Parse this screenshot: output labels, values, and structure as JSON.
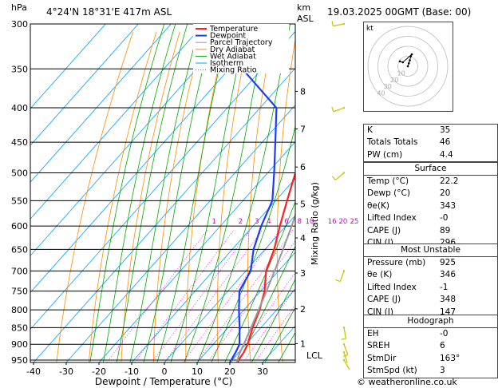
{
  "header": {
    "location": "4°24'N  18°31'E  417m  ASL",
    "date": "19.03.2025  00GMT  (Base: 00)",
    "hpa_label": "hPa",
    "km_label": "km",
    "asl_label": "ASL"
  },
  "copyright": "© weatheronline.co.uk",
  "chart_data": {
    "type": "skew-t",
    "xlabel": "Dewpoint / Temperature (°C)",
    "ylabel_right": "Mixing Ratio (g/kg)",
    "x_ticks": [
      -40,
      -30,
      -20,
      -10,
      0,
      10,
      20,
      30
    ],
    "p_ticks": [
      300,
      350,
      400,
      450,
      500,
      550,
      600,
      650,
      700,
      750,
      800,
      850,
      900,
      950
    ],
    "km_ticks": [
      {
        "label": "8",
        "p": 378
      },
      {
        "label": "7",
        "p": 430
      },
      {
        "label": "6",
        "p": 490
      },
      {
        "label": "5",
        "p": 556
      },
      {
        "label": "4",
        "p": 625
      },
      {
        "label": "3",
        "p": 705
      },
      {
        "label": "2",
        "p": 797
      },
      {
        "label": "1",
        "p": 898
      },
      {
        "label": "LCL",
        "p": 935
      }
    ],
    "mixing_ratio_labels": [
      "1",
      "2",
      "3",
      "4",
      "6",
      "8",
      "10",
      "16",
      "20",
      "25"
    ],
    "mixing_ratio_values": [
      1,
      2,
      3,
      4,
      6,
      8,
      10,
      16,
      20,
      25
    ],
    "legend": [
      "Temperature",
      "Dewpoint",
      "Parcel Trajectory",
      "Dry Adiabat",
      "Wet Adiabat",
      "Isotherm",
      "Mixing Ratio"
    ],
    "legend_colors": [
      "#ff2020",
      "#1a3cff",
      "#999999",
      "#ff8c00",
      "#00aa00",
      "#00a0ff",
      "#ff00ff"
    ],
    "series": [
      {
        "name": "Temperature",
        "color": "#ff2020",
        "points": [
          [
            958,
            22.2
          ],
          [
            925,
            21.5
          ],
          [
            900,
            20.5
          ],
          [
            850,
            17.5
          ],
          [
            800,
            14.8
          ],
          [
            750,
            11.2
          ],
          [
            700,
            6.2
          ],
          [
            650,
            2.8
          ],
          [
            600,
            -1.8
          ],
          [
            550,
            -6.5
          ],
          [
            500,
            -11.5
          ],
          [
            450,
            -17.5
          ],
          [
            400,
            -24.5
          ],
          [
            350,
            -33
          ],
          [
            300,
            -43
          ]
        ]
      },
      {
        "name": "Dewpoint",
        "color": "#1a3cff",
        "points": [
          [
            958,
            20
          ],
          [
            925,
            19
          ],
          [
            900,
            18
          ],
          [
            850,
            13.5
          ],
          [
            800,
            8.5
          ],
          [
            750,
            3.5
          ],
          [
            700,
            1.5
          ],
          [
            650,
            -3.5
          ],
          [
            600,
            -7.5
          ],
          [
            550,
            -11
          ],
          [
            500,
            -18
          ],
          [
            450,
            -26
          ],
          [
            400,
            -35
          ],
          [
            350,
            -56
          ],
          [
            300,
            -63
          ]
        ]
      },
      {
        "name": "Parcel Trajectory",
        "color": "#999999",
        "points": [
          [
            958,
            22.2
          ],
          [
            935,
            20.8
          ],
          [
            900,
            19.3
          ],
          [
            850,
            17
          ],
          [
            800,
            14.5
          ],
          [
            750,
            11.8
          ],
          [
            700,
            8.8
          ],
          [
            650,
            5.5
          ],
          [
            600,
            1.8
          ],
          [
            550,
            -2.5
          ],
          [
            500,
            -7.5
          ],
          [
            450,
            -13.5
          ],
          [
            400,
            -21
          ],
          [
            350,
            -30
          ],
          [
            300,
            -41
          ]
        ]
      }
    ],
    "wind_barbs": [
      {
        "p": 300,
        "dir_deg": 260,
        "kt": 15
      },
      {
        "p": 400,
        "dir_deg": 250,
        "kt": 10
      },
      {
        "p": 500,
        "dir_deg": 230,
        "kt": 5
      },
      {
        "p": 700,
        "dir_deg": 200,
        "kt": 5
      },
      {
        "p": 850,
        "dir_deg": 170,
        "kt": 5
      },
      {
        "p": 900,
        "dir_deg": 160,
        "kt": 5
      },
      {
        "p": 925,
        "dir_deg": 163,
        "kt": 3
      },
      {
        "p": 950,
        "dir_deg": 150,
        "kt": 3
      }
    ],
    "wind_color": "#c8c800"
  },
  "hodograph": {
    "label": "kt",
    "ring_labels": [
      "10",
      "20",
      "30",
      "40"
    ],
    "points": [
      [
        0,
        0
      ],
      [
        1,
        3
      ],
      [
        2,
        6
      ],
      [
        3,
        10
      ],
      [
        4,
        12
      ],
      [
        -5,
        4
      ],
      [
        -8,
        5
      ]
    ]
  },
  "indices": [
    {
      "k": "K",
      "v": "35"
    },
    {
      "k": "Totals Totals",
      "v": "46"
    },
    {
      "k": "PW (cm)",
      "v": "4.4"
    }
  ],
  "surface": {
    "title": "Surface",
    "rows": [
      {
        "k": "Temp (°C)",
        "v": "22.2"
      },
      {
        "k": "Dewp (°C)",
        "v": "20"
      },
      {
        "k": "θe(K)",
        "v": "343"
      },
      {
        "k": "Lifted Index",
        "v": "-0"
      },
      {
        "k": "CAPE (J)",
        "v": "89"
      },
      {
        "k": "CIN (J)",
        "v": "296"
      }
    ]
  },
  "most_unstable": {
    "title": "Most Unstable",
    "rows": [
      {
        "k": "Pressure (mb)",
        "v": "925"
      },
      {
        "k": "θe (K)",
        "v": "346"
      },
      {
        "k": "Lifted Index",
        "v": "-1"
      },
      {
        "k": "CAPE (J)",
        "v": "348"
      },
      {
        "k": "CIN (J)",
        "v": "147"
      }
    ]
  },
  "hodograph_section": {
    "title": "Hodograph",
    "rows": [
      {
        "k": "EH",
        "v": "-0"
      },
      {
        "k": "SREH",
        "v": "6"
      },
      {
        "k": "StmDir",
        "v": "163°"
      },
      {
        "k": "StmSpd (kt)",
        "v": "3"
      }
    ]
  }
}
